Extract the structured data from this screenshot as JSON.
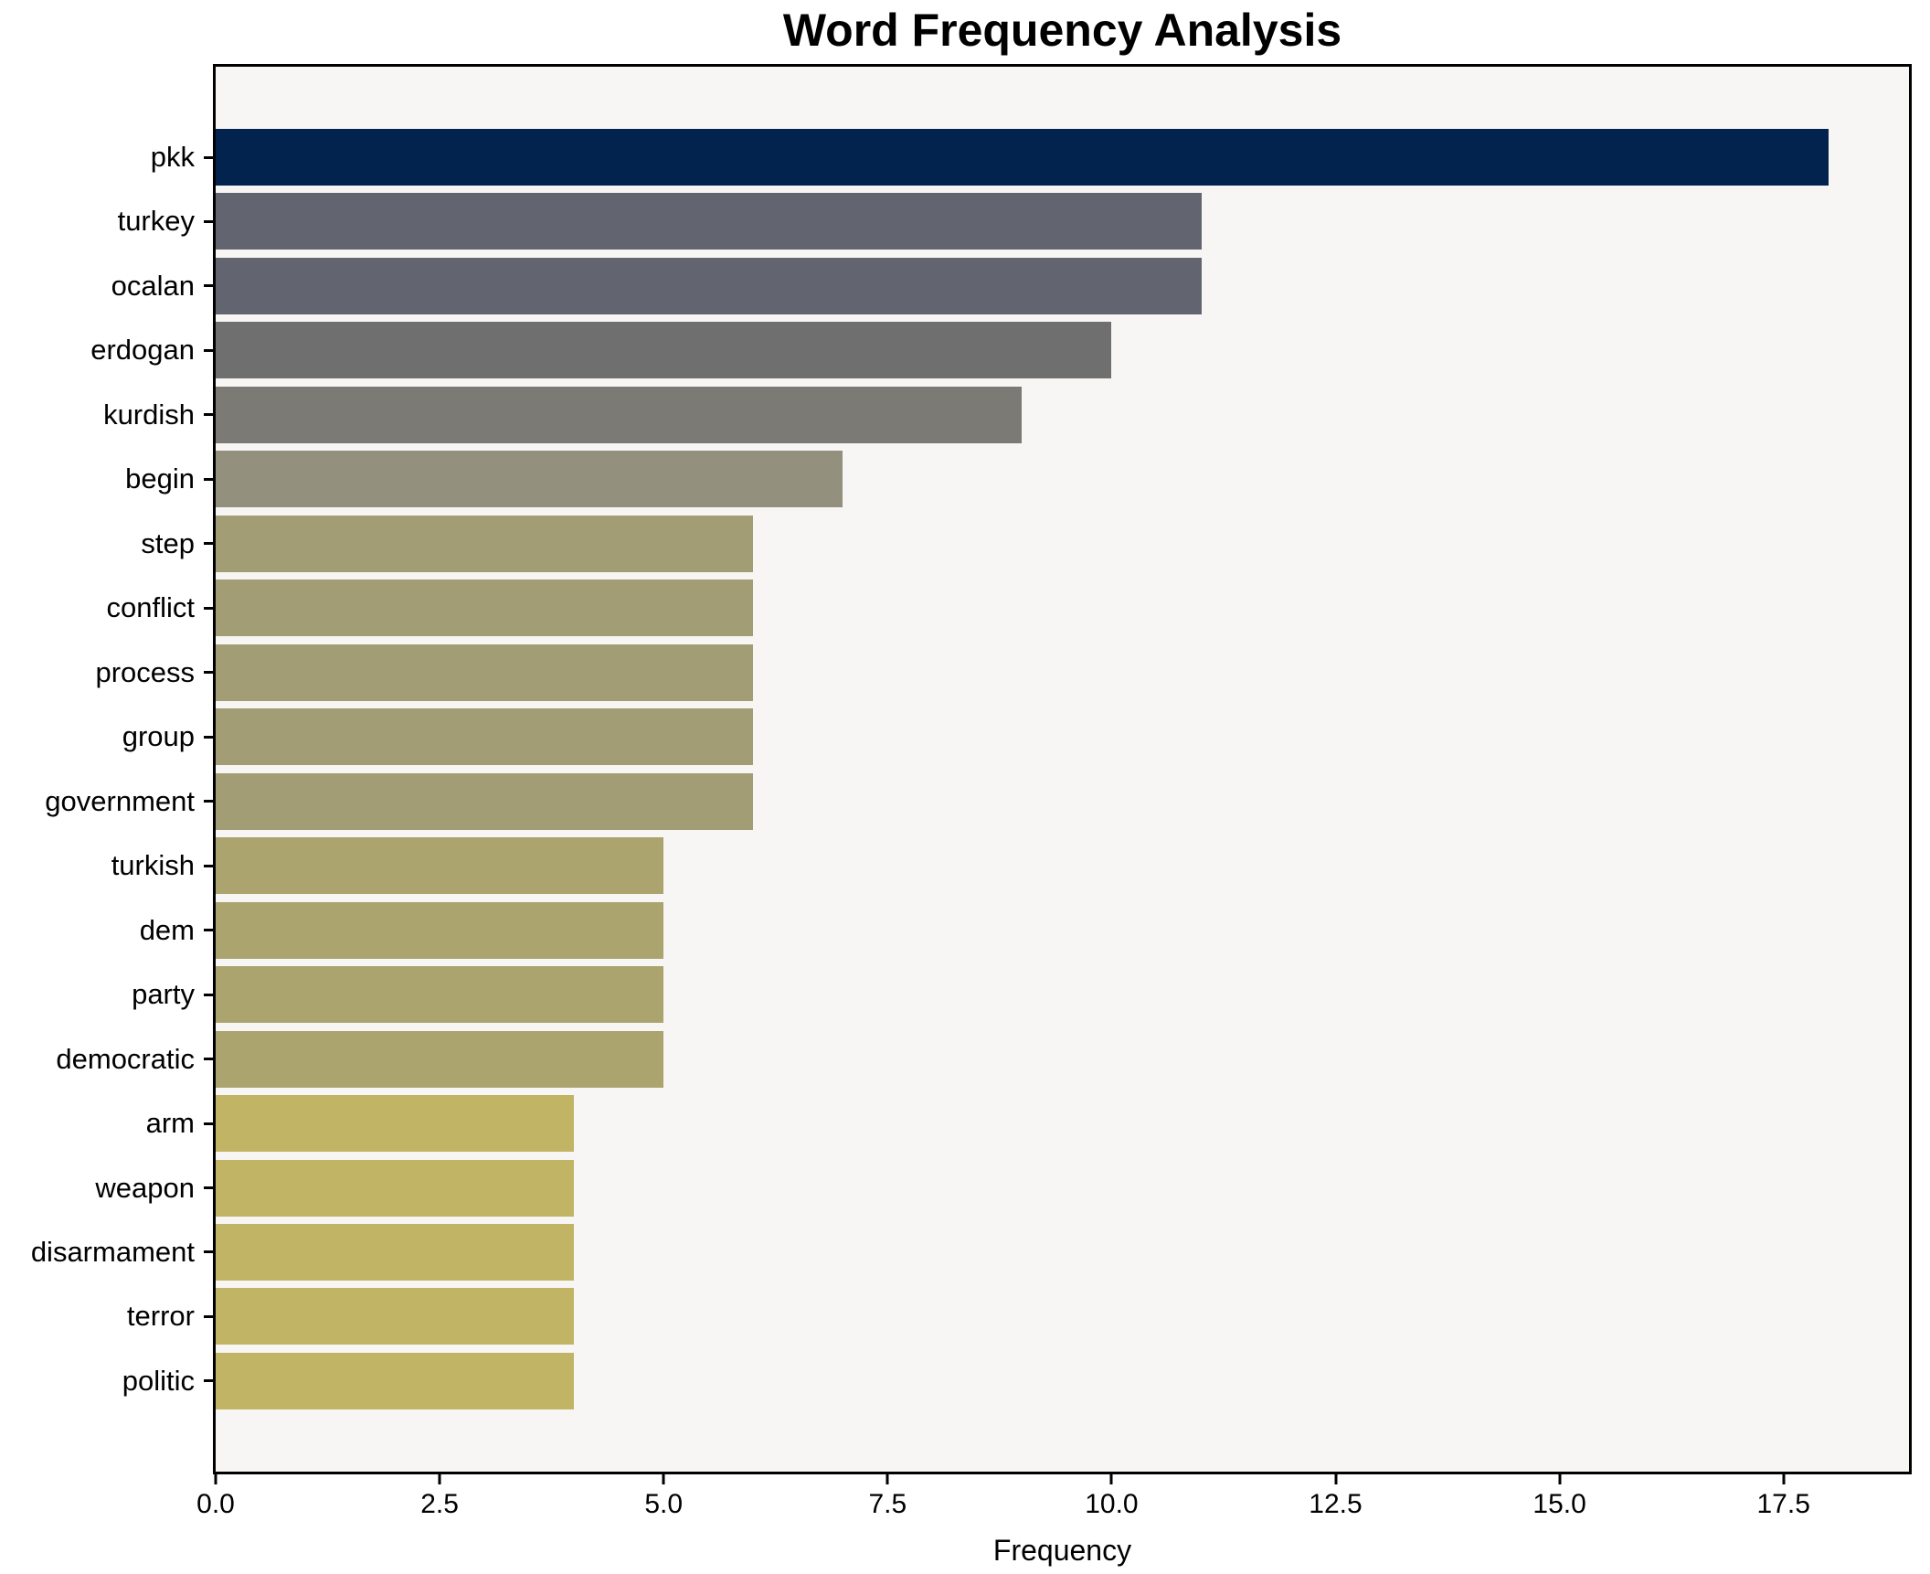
{
  "chart_data": {
    "type": "bar",
    "orientation": "horizontal",
    "title": "Word Frequency Analysis",
    "xlabel": "Frequency",
    "ylabel": "",
    "categories": [
      "pkk",
      "turkey",
      "ocalan",
      "erdogan",
      "kurdish",
      "begin",
      "step",
      "conflict",
      "process",
      "group",
      "government",
      "turkish",
      "dem",
      "party",
      "democratic",
      "arm",
      "weapon",
      "disarmament",
      "terror",
      "politic"
    ],
    "values": [
      18,
      11,
      11,
      10,
      9,
      7,
      6,
      6,
      6,
      6,
      6,
      5,
      5,
      5,
      5,
      4,
      4,
      4,
      4,
      4
    ],
    "bar_colors": [
      "#02234e",
      "#626470",
      "#626470",
      "#6f6f70",
      "#7b7a74",
      "#93917d",
      "#a29d74",
      "#a29d74",
      "#a29d74",
      "#a29d74",
      "#a29d74",
      "#aba46f",
      "#aba46f",
      "#aba46f",
      "#aba46f",
      "#c1b465",
      "#c1b465",
      "#c1b465",
      "#c1b465",
      "#c1b465"
    ],
    "xlim": [
      0,
      18.9
    ],
    "xticks": [
      0,
      2.5,
      5,
      7.5,
      10,
      12.5,
      15,
      17.5
    ],
    "xtick_labels": [
      "0.0",
      "2.5",
      "5.0",
      "7.5",
      "10.0",
      "12.5",
      "15.0",
      "17.5"
    ],
    "grid": false,
    "legend": null,
    "colors": {
      "plot_background": "#f7f6f4",
      "figure_background": "#ffffff",
      "spine": "#000000",
      "text": "#000000"
    }
  }
}
